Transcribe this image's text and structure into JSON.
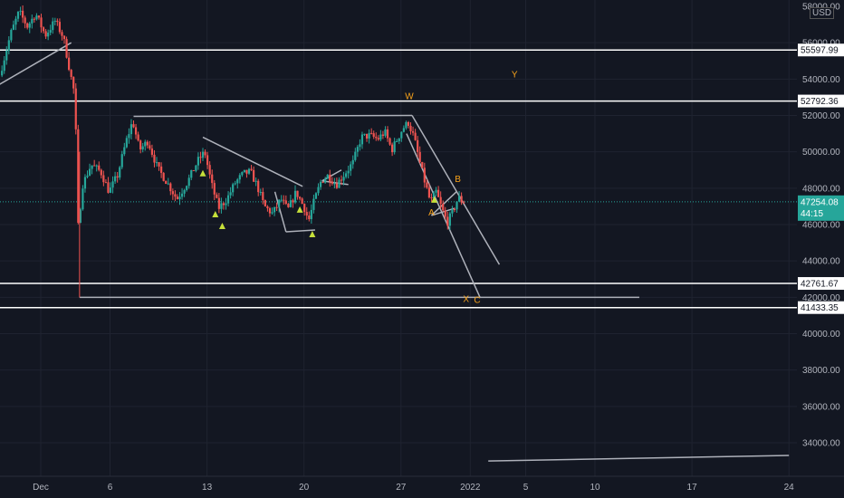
{
  "currency_label": "USD",
  "colors": {
    "background": "#131722",
    "grid": "#1f2330",
    "up": "#26a69a",
    "down": "#ef5350",
    "accent": "#f7a21b",
    "drawing": "#aeb1ba",
    "white_line": "#ffffff",
    "price_badge": "#26a69a"
  },
  "chart_data": {
    "type": "candlestick",
    "y_axis": {
      "min": 33000,
      "max": 58500,
      "ticks": [
        34000,
        36000,
        38000,
        40000,
        42000,
        44000,
        46000,
        48000,
        50000,
        52000,
        54000,
        56000
      ],
      "tick_labels": [
        "34000.00",
        "36000.00",
        "38000.00",
        "40000.00",
        "42000.00",
        "44000.00",
        "46000.00",
        "48000.00",
        "50000.00",
        "52000.00",
        "54000.00",
        "56000.00"
      ],
      "top_partial_label": "58000.00"
    },
    "x_axis": {
      "ticks": [
        {
          "day": 1,
          "label": "Dec"
        },
        {
          "day": 6,
          "label": "6"
        },
        {
          "day": 13,
          "label": "13"
        },
        {
          "day": 20,
          "label": "20"
        },
        {
          "day": 27,
          "label": "27"
        },
        {
          "day": 32,
          "label": "2022"
        },
        {
          "day": 36,
          "label": "5"
        },
        {
          "day": 41,
          "label": "10"
        },
        {
          "day": 48,
          "label": "17"
        },
        {
          "day": 55,
          "label": "24"
        }
      ]
    },
    "horizontal_levels": [
      {
        "price": 55597.99,
        "label": "55597.99"
      },
      {
        "price": 52792.36,
        "label": "52792.36"
      },
      {
        "price": 42761.67,
        "label": "42761.67"
      },
      {
        "price": 41433.35,
        "label": "41433.35"
      }
    ],
    "current_price": {
      "price": 47254.08,
      "label": "47254.08",
      "countdown": "44:15"
    },
    "price_path": [
      {
        "day": -1.8,
        "price": 54200
      },
      {
        "day": -1.0,
        "price": 56500
      },
      {
        "day": -0.4,
        "price": 57700
      },
      {
        "day": 0.2,
        "price": 56900
      },
      {
        "day": 0.8,
        "price": 57600
      },
      {
        "day": 1.5,
        "price": 56400
      },
      {
        "day": 2.2,
        "price": 57200
      },
      {
        "day": 2.8,
        "price": 56300
      },
      {
        "day": 3.3,
        "price": 54300
      },
      {
        "day": 3.6,
        "price": 53200
      },
      {
        "day": 3.75,
        "price": 50000
      },
      {
        "day": 3.85,
        "price": 45800
      },
      {
        "day": 4.2,
        "price": 48200
      },
      {
        "day": 4.8,
        "price": 49300
      },
      {
        "day": 5.5,
        "price": 48900
      },
      {
        "day": 6.1,
        "price": 47800
      },
      {
        "day": 6.7,
        "price": 48700
      },
      {
        "day": 7.3,
        "price": 50500
      },
      {
        "day": 7.8,
        "price": 51700
      },
      {
        "day": 8.3,
        "price": 50100
      },
      {
        "day": 8.9,
        "price": 50600
      },
      {
        "day": 9.6,
        "price": 49100
      },
      {
        "day": 10.3,
        "price": 48300
      },
      {
        "day": 11.0,
        "price": 47400
      },
      {
        "day": 11.8,
        "price": 48400
      },
      {
        "day": 12.5,
        "price": 49500
      },
      {
        "day": 13.0,
        "price": 50000
      },
      {
        "day": 13.5,
        "price": 48200
      },
      {
        "day": 14.0,
        "price": 46900
      },
      {
        "day": 14.6,
        "price": 47400
      },
      {
        "day": 15.2,
        "price": 48300
      },
      {
        "day": 15.8,
        "price": 48800
      },
      {
        "day": 16.3,
        "price": 48900
      },
      {
        "day": 16.8,
        "price": 48100
      },
      {
        "day": 17.3,
        "price": 47000
      },
      {
        "day": 17.9,
        "price": 46600
      },
      {
        "day": 18.5,
        "price": 47400
      },
      {
        "day": 19.0,
        "price": 46800
      },
      {
        "day": 19.6,
        "price": 47800
      },
      {
        "day": 20.2,
        "price": 46900
      },
      {
        "day": 20.5,
        "price": 46200
      },
      {
        "day": 20.9,
        "price": 47300
      },
      {
        "day": 21.4,
        "price": 48400
      },
      {
        "day": 21.9,
        "price": 48700
      },
      {
        "day": 22.5,
        "price": 48200
      },
      {
        "day": 23.1,
        "price": 48800
      },
      {
        "day": 23.7,
        "price": 49400
      },
      {
        "day": 24.3,
        "price": 50800
      },
      {
        "day": 24.9,
        "price": 50900
      },
      {
        "day": 25.5,
        "price": 50700
      },
      {
        "day": 26.0,
        "price": 51100
      },
      {
        "day": 26.5,
        "price": 50100
      },
      {
        "day": 26.9,
        "price": 50700
      },
      {
        "day": 27.3,
        "price": 51300
      },
      {
        "day": 27.7,
        "price": 51600
      },
      {
        "day": 28.1,
        "price": 50800
      },
      {
        "day": 28.5,
        "price": 49500
      },
      {
        "day": 28.9,
        "price": 48300
      },
      {
        "day": 29.3,
        "price": 47200
      },
      {
        "day": 29.7,
        "price": 47800
      },
      {
        "day": 30.1,
        "price": 46900
      },
      {
        "day": 30.5,
        "price": 46100
      },
      {
        "day": 30.9,
        "price": 46700
      },
      {
        "day": 31.3,
        "price": 47500
      },
      {
        "day": 31.6,
        "price": 47254
      }
    ],
    "annotations": [
      {
        "text": "W",
        "day": 27.6,
        "price": 52900,
        "color": "#f7a21b"
      },
      {
        "text": "Y",
        "day": 35.2,
        "price": 54100,
        "color": "#f7a21b"
      },
      {
        "text": "B",
        "day": 31.1,
        "price": 48350,
        "color": "#f7a21b"
      },
      {
        "text": "A",
        "day": 29.2,
        "price": 46500,
        "color": "#f7a21b"
      },
      {
        "text": "X",
        "day": 31.7,
        "price": 41750,
        "color": "#f7a21b"
      },
      {
        "text": "C",
        "day": 32.5,
        "price": 41700,
        "color": "#f7a21b"
      }
    ],
    "markers": [
      {
        "day": 13.6,
        "price": 46550,
        "kind": "up-triangle"
      },
      {
        "day": 14.1,
        "price": 45900,
        "kind": "up-triangle"
      },
      {
        "day": 12.7,
        "price": 48800,
        "kind": "up-triangle"
      },
      {
        "day": 19.7,
        "price": 46800,
        "kind": "up-triangle"
      },
      {
        "day": 20.6,
        "price": 45450,
        "kind": "up-triangle"
      },
      {
        "day": 29.4,
        "price": 47350,
        "kind": "up-triangle"
      }
    ],
    "trendlines": [
      {
        "points": [
          [
            -2.0,
            53700
          ],
          [
            3.2,
            56000
          ]
        ]
      },
      {
        "points": [
          [
            3.8,
            42000
          ],
          [
            44.2,
            42000
          ]
        ]
      },
      {
        "points": [
          [
            7.7,
            51950
          ],
          [
            27.8,
            52000
          ]
        ]
      },
      {
        "points": [
          [
            27.8,
            52000
          ],
          [
            34.1,
            43800
          ]
        ]
      },
      {
        "points": [
          [
            27.4,
            51000
          ],
          [
            32.7,
            42000
          ]
        ]
      },
      {
        "points": [
          [
            12.7,
            50800
          ],
          [
            19.9,
            48100
          ]
        ]
      },
      {
        "points": [
          [
            18.7,
            45600
          ],
          [
            20.8,
            45700
          ]
        ]
      },
      {
        "points": [
          [
            18.7,
            45600
          ],
          [
            17.9,
            47800
          ]
        ]
      },
      {
        "points": [
          [
            21.3,
            48400
          ],
          [
            22.7,
            49000
          ]
        ]
      },
      {
        "points": [
          [
            21.3,
            48400
          ],
          [
            23.2,
            48200
          ]
        ]
      },
      {
        "points": [
          [
            29.2,
            46500
          ],
          [
            31.0,
            47800
          ]
        ]
      },
      {
        "points": [
          [
            29.2,
            46500
          ],
          [
            30.9,
            46900
          ]
        ]
      },
      {
        "points": [
          [
            33.3,
            33000
          ],
          [
            55.0,
            33300
          ]
        ]
      }
    ]
  }
}
